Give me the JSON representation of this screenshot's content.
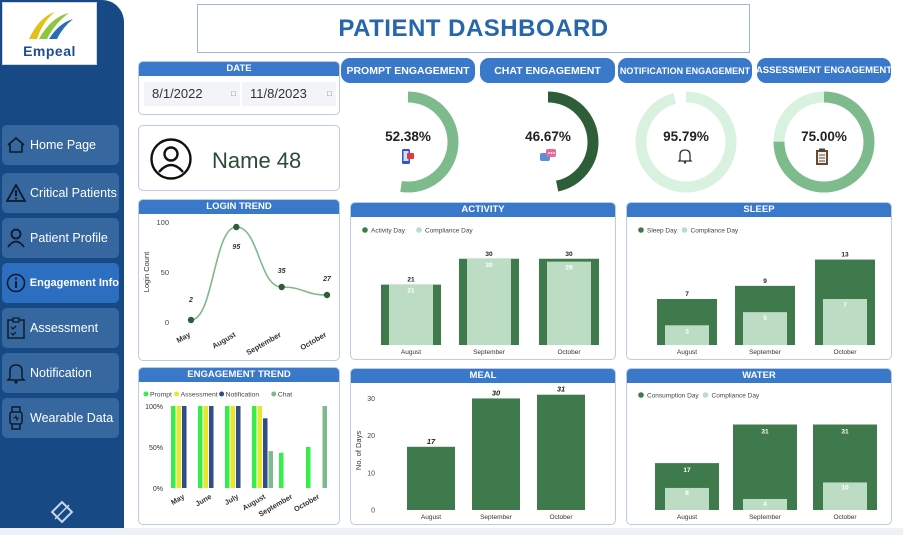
{
  "app": {
    "logo_text": "Empeal",
    "title": "PATIENT DASHBOARD"
  },
  "sidebar": {
    "items": [
      {
        "label": "Home Page",
        "icon": "home-icon",
        "active": false
      },
      {
        "label": "Critical Patients",
        "icon": "warning-icon",
        "active": false
      },
      {
        "label": "Patient Profile",
        "icon": "person-icon",
        "active": false
      },
      {
        "label": "Engagement Info",
        "icon": "info-icon",
        "active": true
      },
      {
        "label": "Assessment",
        "icon": "checklist-icon",
        "active": false
      },
      {
        "label": "Notification",
        "icon": "bell-icon",
        "active": false
      },
      {
        "label": "Wearable Data",
        "icon": "watch-icon",
        "active": false
      }
    ],
    "footer_icon": "diamond-icon"
  },
  "date_filter": {
    "label": "DATE",
    "start": "8/1/2022",
    "end": "11/8/2023",
    "calendar_icon": "calendar-icon"
  },
  "patient": {
    "name": "Name 48",
    "avatar_icon": "user-circle-icon"
  },
  "engagement": [
    {
      "label": "PROMPT ENGAGEMENT",
      "value": "52.38%",
      "fraction": 0.5238,
      "color": "#7dbb8c",
      "track": "#ffffff",
      "icon": "phone-notification-icon"
    },
    {
      "label": "CHAT ENGAGEMENT",
      "value": "46.67%",
      "fraction": 0.4667,
      "color": "#2e5e38",
      "track": "#ffffff",
      "icon": "chat-icon"
    },
    {
      "label": "NOTIFICATION ENGAGEMENT",
      "value": "95.79%",
      "fraction": 0.9579,
      "color": "#d9f2df",
      "track": "#ffffff",
      "icon": "bell-icon"
    },
    {
      "label": "ASSESSMENT ENGAGEMENT",
      "value": "75.00%",
      "fraction": 0.75,
      "color": "#7dbb8c",
      "track": "#d9f2df",
      "icon": "clipboard-icon"
    }
  ],
  "chart_data": [
    {
      "id": "login",
      "type": "line",
      "title": "LOGIN TREND",
      "ylabel": "Login Count",
      "xlabel": "",
      "categories": [
        "May",
        "August",
        "September",
        "October"
      ],
      "values": [
        2,
        95,
        35,
        27
      ],
      "ylim": [
        0,
        100
      ],
      "yticks": [
        0,
        50,
        100
      ],
      "color": "#7fb98a"
    },
    {
      "id": "engagement_trend",
      "type": "bar",
      "title": "ENGAGEMENT TREND",
      "categories": [
        "May",
        "June",
        "July",
        "August",
        "September",
        "October"
      ],
      "series": [
        {
          "name": "Prompt",
          "color": "#35ef48",
          "values": [
            100,
            100,
            100,
            100,
            43,
            50
          ]
        },
        {
          "name": "Assessment",
          "color": "#e8e82a",
          "values": [
            100,
            100,
            100,
            100,
            0,
            0
          ]
        },
        {
          "name": "Notification",
          "color": "#2e4e85",
          "values": [
            100,
            100,
            100,
            85,
            0,
            0
          ]
        },
        {
          "name": "Chat",
          "color": "#7dbb8c",
          "values": [
            0,
            0,
            0,
            45,
            0,
            100
          ]
        }
      ],
      "yticks": [
        "100%",
        "50%",
        "0%"
      ],
      "ylim": [
        0,
        100
      ]
    },
    {
      "id": "activity",
      "type": "bar",
      "title": "ACTIVITY",
      "categories": [
        "August",
        "September",
        "October"
      ],
      "series": [
        {
          "name": "Activity Day",
          "color": "#3e7a4b",
          "values": [
            21,
            30,
            30
          ]
        },
        {
          "name": "Compliance Day",
          "color": "#bcdcc3",
          "values": [
            21,
            30,
            29
          ]
        }
      ],
      "ylim": [
        0,
        32
      ]
    },
    {
      "id": "sleep",
      "type": "bar",
      "title": "SLEEP",
      "categories": [
        "August",
        "September",
        "October"
      ],
      "series": [
        {
          "name": "Sleep Day",
          "color": "#3e7a4b",
          "values": [
            7,
            9,
            13
          ]
        },
        {
          "name": "Compliance Day",
          "color": "#bcdcc3",
          "values": [
            3,
            5,
            7
          ]
        }
      ],
      "ylim": [
        0,
        14
      ]
    },
    {
      "id": "meal",
      "type": "bar",
      "title": "MEAL",
      "ylabel": "No. of Days",
      "categories": [
        "August",
        "September",
        "October"
      ],
      "values": [
        17,
        30,
        31
      ],
      "yticks": [
        0,
        10,
        20,
        30
      ],
      "ylim": [
        0,
        32
      ],
      "color": "#3e7a4b"
    },
    {
      "id": "water",
      "type": "bar",
      "title": "WATER",
      "categories": [
        "August",
        "September",
        "October"
      ],
      "series": [
        {
          "name": "Consumption Day",
          "color": "#3e7a4b",
          "values": [
            17,
            31,
            31
          ]
        },
        {
          "name": "Compliance Day",
          "color": "#bcdcc3",
          "values": [
            8,
            4,
            10
          ]
        }
      ],
      "ylim": [
        0,
        33
      ]
    }
  ]
}
